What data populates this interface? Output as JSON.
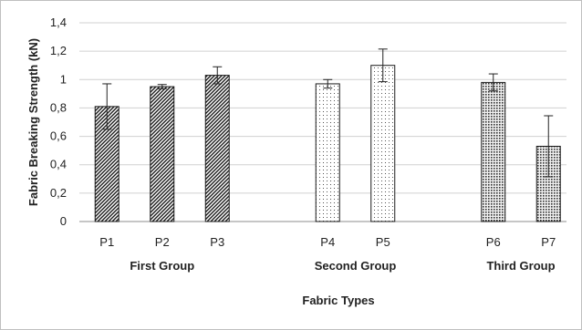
{
  "chart_data": {
    "type": "bar",
    "xlabel": "Fabric Types",
    "ylabel": "Fabric Breaking Strength (kN)",
    "ylim": [
      0,
      1.4
    ],
    "yticks": [
      "0",
      "0,2",
      "0,4",
      "0,6",
      "0,8",
      "1",
      "1,2",
      "1,4"
    ],
    "ytick_values": [
      0,
      0.2,
      0.4,
      0.6,
      0.8,
      1.0,
      1.2,
      1.4
    ],
    "grid": true,
    "legend": "none",
    "groups": [
      {
        "label": "First Group",
        "pattern": "diagonal-hatch",
        "bars": [
          {
            "category": "P1",
            "value": 0.81,
            "err": 0.16
          },
          {
            "category": "P2",
            "value": 0.95,
            "err": 0.015
          },
          {
            "category": "P3",
            "value": 1.03,
            "err": 0.06
          }
        ]
      },
      {
        "label": "Second Group",
        "pattern": "dots",
        "bars": [
          {
            "category": "P4",
            "value": 0.97,
            "err": 0.03
          },
          {
            "category": "P5",
            "value": 1.1,
            "err": 0.115
          }
        ]
      },
      {
        "label": "Third Group",
        "pattern": "dense-grid",
        "bars": [
          {
            "category": "P6",
            "value": 0.98,
            "err": 0.06
          },
          {
            "category": "P7",
            "value": 0.53,
            "err": 0.215
          }
        ]
      }
    ]
  }
}
